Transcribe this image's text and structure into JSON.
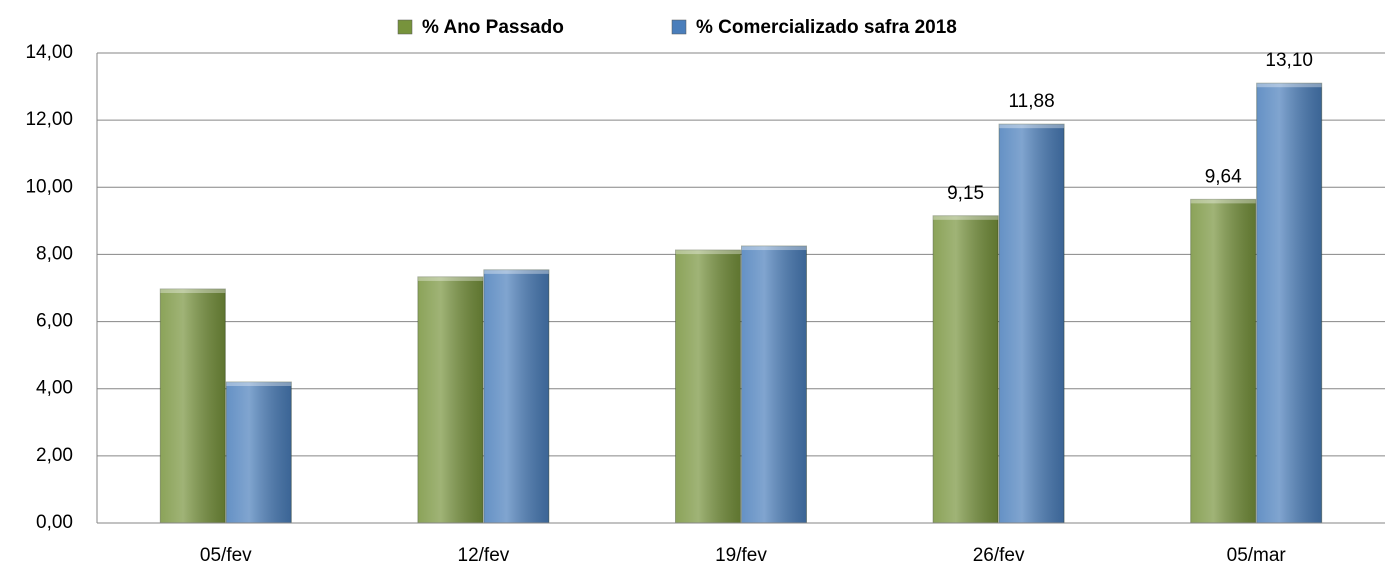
{
  "chart_data": {
    "type": "bar",
    "categories": [
      "05/fev",
      "12/fev",
      "19/fev",
      "26/fev",
      "05/mar"
    ],
    "series": [
      {
        "name": "% Ano Passado",
        "color": "#77933c",
        "values": [
          6.97,
          7.33,
          8.13,
          9.15,
          9.64
        ],
        "value_labels": [
          null,
          null,
          null,
          "9,15",
          "9,64"
        ]
      },
      {
        "name": "% Comercializado safra 2018",
        "color": "#4a7ebb",
        "values": [
          4.2,
          7.54,
          8.25,
          11.88,
          13.1
        ],
        "value_labels": [
          null,
          null,
          null,
          "11,88",
          "13,10"
        ]
      }
    ],
    "ylim": [
      0,
      14
    ],
    "yticks": [
      {
        "value": 0,
        "label": "0,00"
      },
      {
        "value": 2,
        "label": "2,00"
      },
      {
        "value": 4,
        "label": "4,00"
      },
      {
        "value": 6,
        "label": "6,00"
      },
      {
        "value": 8,
        "label": "8,00"
      },
      {
        "value": 10,
        "label": "10,00"
      },
      {
        "value": 12,
        "label": "12,00"
      },
      {
        "value": 14,
        "label": "14,00"
      }
    ],
    "grid": true,
    "legend": "top"
  }
}
